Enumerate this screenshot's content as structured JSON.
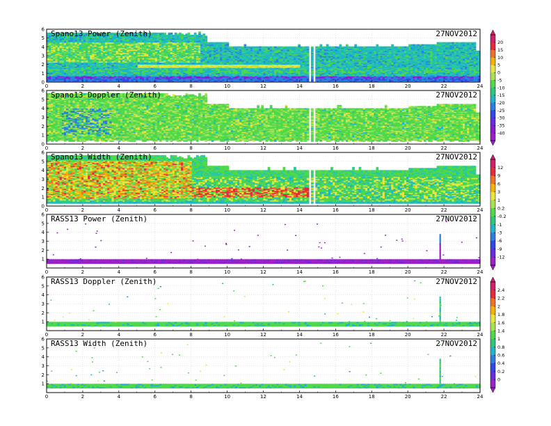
{
  "chart_data": [
    {
      "type": "heatmap",
      "title": "Spano13 Power (Zenith)",
      "date": "27NOV2012",
      "x_ticks": [
        "0",
        "2",
        "4",
        "6",
        "8",
        "10",
        "12",
        "14",
        "16",
        "18",
        "20",
        "22",
        "24"
      ],
      "y_ticks": [
        "0",
        "1",
        "2",
        "3",
        "4",
        "5",
        "6"
      ],
      "xlim": [
        0,
        24
      ],
      "ylim": [
        0,
        6
      ],
      "colorbar": "cb1"
    },
    {
      "type": "heatmap",
      "title": "Spano13 Doppler (Zenith)",
      "date": "27NOV2012",
      "x_ticks": [
        "0",
        "2",
        "4",
        "6",
        "8",
        "10",
        "12",
        "14",
        "16",
        "18",
        "20",
        "22",
        "24"
      ],
      "y_ticks": [
        "0",
        "1",
        "2",
        "3",
        "4",
        "5",
        "6"
      ],
      "xlim": [
        0,
        24
      ],
      "ylim": [
        0,
        6
      ],
      "colorbar": "cb1"
    },
    {
      "type": "heatmap",
      "title": "Spano13 Width (Zenith)",
      "date": "27NOV2012",
      "x_ticks": [
        "0",
        "2",
        "4",
        "6",
        "8",
        "10",
        "12",
        "14",
        "16",
        "18",
        "20",
        "22",
        "24"
      ],
      "y_ticks": [
        "0",
        "1",
        "2",
        "3",
        "4",
        "5",
        "6"
      ],
      "xlim": [
        0,
        24
      ],
      "ylim": [
        0,
        6
      ],
      "colorbar": "cb2"
    },
    {
      "type": "scatter",
      "title": "RASS13 Power (Zenith)",
      "date": "27NOV2012",
      "x_ticks": [
        "0",
        "2",
        "4",
        "6",
        "8",
        "10",
        "12",
        "14",
        "16",
        "18",
        "20",
        "22",
        "24"
      ],
      "y_ticks": [
        "1",
        "2",
        "3",
        "4",
        "5",
        "6"
      ],
      "xlim": [
        0,
        24
      ],
      "ylim": [
        0,
        6
      ],
      "colorbar": "cb2"
    },
    {
      "type": "scatter",
      "title": "RASS13 Doppler (Zenith)",
      "date": "27NOV2012",
      "x_ticks": [
        "0",
        "2",
        "4",
        "6",
        "8",
        "10",
        "12",
        "14",
        "16",
        "18",
        "20",
        "22",
        "24"
      ],
      "y_ticks": [
        "1",
        "2",
        "3",
        "4",
        "5",
        "6"
      ],
      "xlim": [
        0,
        24
      ],
      "ylim": [
        0,
        6
      ],
      "colorbar": "cb3"
    },
    {
      "type": "scatter",
      "title": "RASS13 Width (Zenith)",
      "date": "27NOV2012",
      "x_ticks": [
        "0",
        "2",
        "4",
        "6",
        "8",
        "10",
        "12",
        "14",
        "16",
        "18",
        "20",
        "22",
        "24"
      ],
      "y_ticks": [
        "1",
        "2",
        "3",
        "4",
        "5",
        "6"
      ],
      "xlim": [
        0,
        24
      ],
      "ylim": [
        0,
        6
      ],
      "colorbar": "cb3"
    }
  ],
  "colorbars": {
    "cb1": {
      "labels": [
        "20",
        "15",
        "10",
        "5",
        "0",
        "-5",
        "-10",
        "-15",
        "-20",
        "-25",
        "-30",
        "-35",
        "-40"
      ],
      "colors": [
        "#d0206a",
        "#e8283c",
        "#f07028",
        "#f5b000",
        "#e6e63c",
        "#a8e050",
        "#4ed84a",
        "#28c878",
        "#1fb4c8",
        "#2a7fe0",
        "#3048e8",
        "#6a2ae0",
        "#8c1ad0",
        "#a020c8"
      ]
    },
    "cb2": {
      "labels": [
        "12",
        "9",
        "6",
        "3",
        "1",
        "0.2",
        "-0.2",
        "-1",
        "-3",
        "-6",
        "-9",
        "-12"
      ],
      "colors": [
        "#d0206a",
        "#e8283c",
        "#f07028",
        "#f5b000",
        "#e6e63c",
        "#a8e050",
        "#4ed84a",
        "#28c878",
        "#1fb4c8",
        "#2a7fe0",
        "#3048e8",
        "#6a2ae0",
        "#a020c8"
      ]
    },
    "cb3": {
      "labels": [
        "2.4",
        "2.2",
        "2",
        "1.8",
        "1.6",
        "1.4",
        "1",
        "0.8",
        "0.6",
        "0.4",
        "0.2",
        "0"
      ],
      "colors": [
        "#d0206a",
        "#e8283c",
        "#f07028",
        "#f5b000",
        "#e6e63c",
        "#a8e050",
        "#4ed84a",
        "#28c878",
        "#1fb4c8",
        "#2a7fe0",
        "#3048e8",
        "#6a2ae0",
        "#a020c8"
      ]
    }
  }
}
